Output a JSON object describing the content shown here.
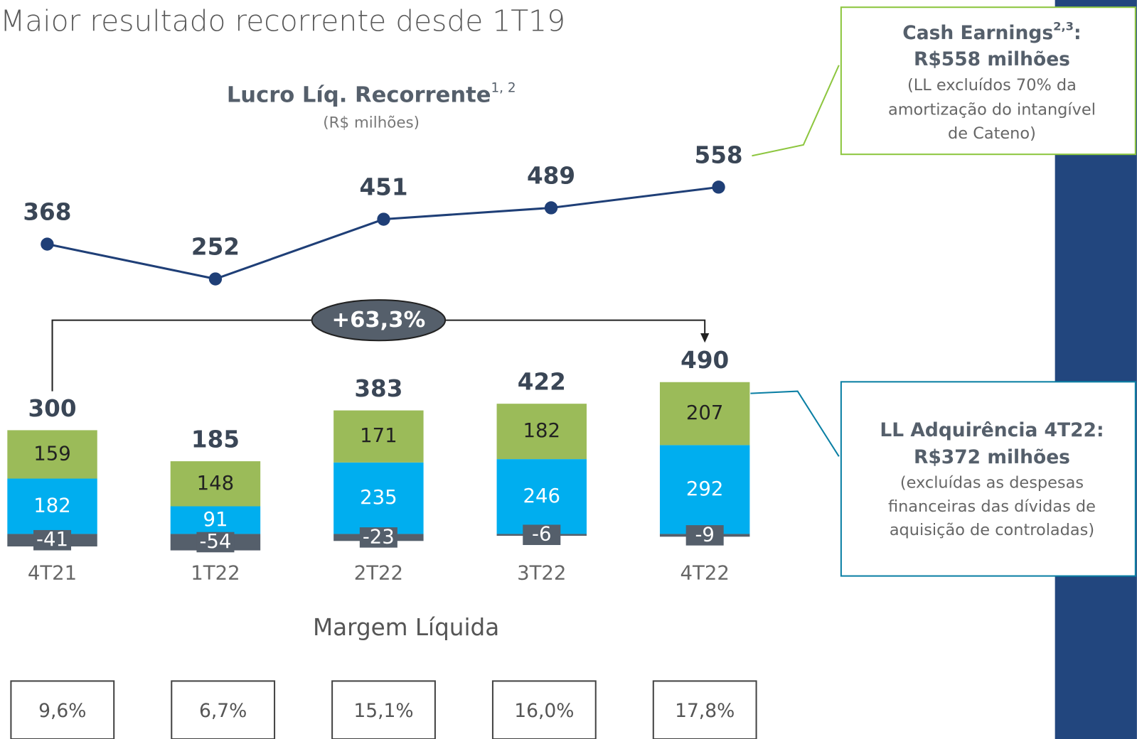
{
  "title": "Maior resultado recorrente desde 1T19",
  "chart_data": [
    {
      "type": "line",
      "title": "Lucro Líq. Recorrente",
      "title_superscript": "1, 2",
      "subtitle": "(R$ milhões)",
      "values": [
        368,
        252,
        451,
        489,
        558
      ],
      "color": "#1f3f77"
    },
    {
      "type": "bar",
      "stacked": true,
      "categories": [
        "4T21",
        "1T22",
        "2T22",
        "3T22",
        "4T22"
      ],
      "series": [
        {
          "color": "#00aeef",
          "label_color": "#ffffff",
          "values": [
            182,
            91,
            235,
            246,
            292
          ]
        },
        {
          "color": "#9bbb59",
          "label_color": "#222222",
          "values": [
            159,
            148,
            171,
            182,
            207
          ]
        },
        {
          "color": "#555f6b",
          "label_color": "#ffffff",
          "values": [
            -41,
            -54,
            -23,
            -6,
            -9
          ]
        }
      ],
      "totals": [
        300,
        185,
        383,
        422,
        490
      ],
      "annotation": "+63,3%"
    }
  ],
  "margin": {
    "title": "Margem Líquida",
    "items": [
      "9,6%",
      "6,7%",
      "15,1%",
      "16,0%",
      "17,8%"
    ]
  },
  "callouts": [
    {
      "heading": "Cash Earnings",
      "superscript": "2,3",
      "heading_suffix": ":",
      "subheading": "R$558 milhões",
      "lines": [
        "(LL excluídos 70% da",
        "amortização do intangível",
        "de Cateno)"
      ],
      "color": "#8dc63f"
    },
    {
      "heading": "LL Adquirência 4T22:",
      "subheading": "R$372 milhões",
      "lines": [
        "(excluídas as despesas",
        "financeiras das dívidas de",
        "aquisição de controladas)"
      ],
      "color": "#0a7fa4"
    }
  ]
}
